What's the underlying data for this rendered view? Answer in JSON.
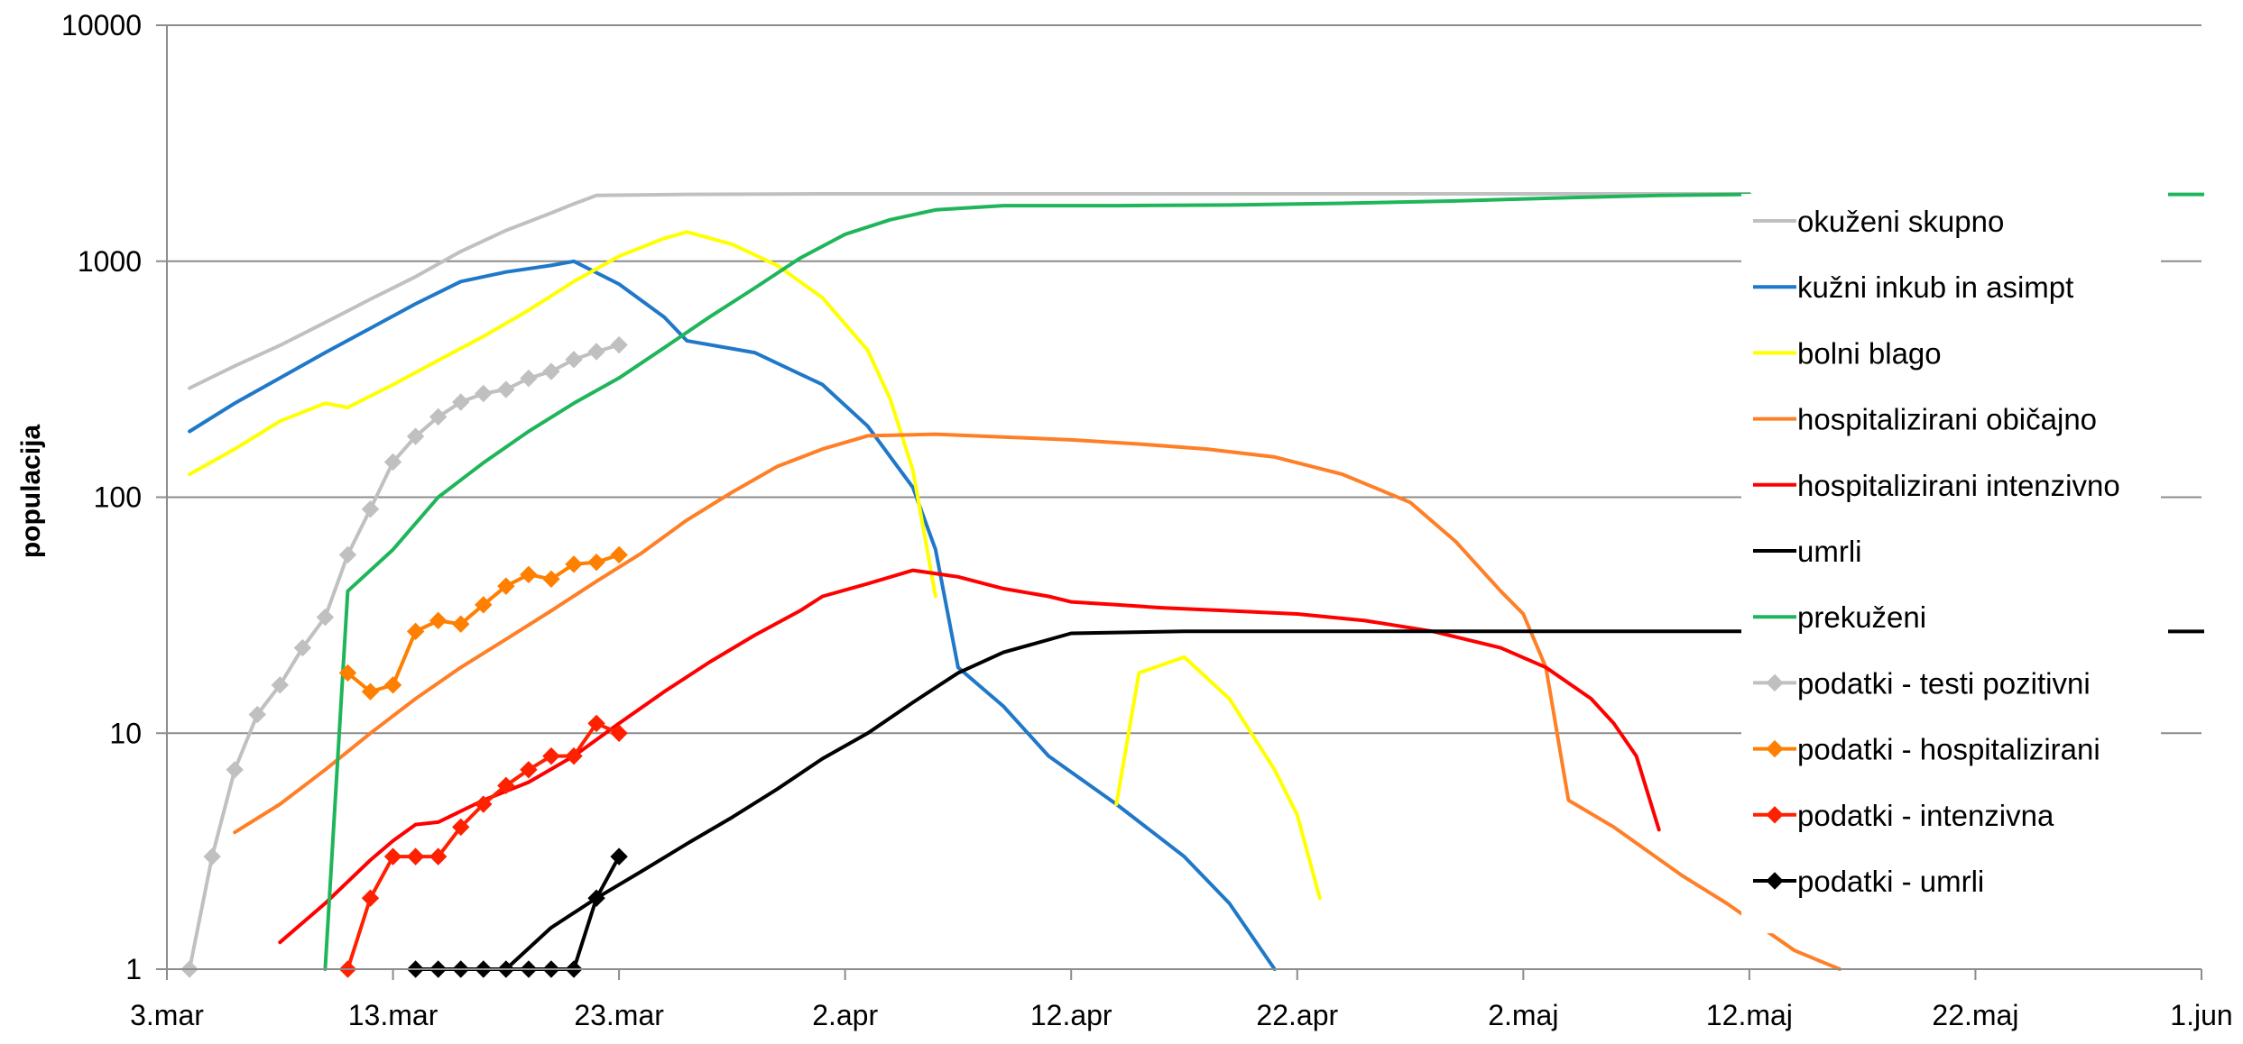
{
  "chart_data": {
    "type": "line",
    "title": "",
    "xlabel": "",
    "ylabel": "populacija",
    "yscale": "log",
    "ylim": [
      1,
      10000
    ],
    "yticks": [
      1,
      10,
      100,
      1000,
      10000
    ],
    "ytick_labels": [
      "1",
      "10",
      "100",
      "1000",
      "10000"
    ],
    "xlim": [
      "2020-03-03",
      "2020-06-01"
    ],
    "xticks": [
      "2020-03-03",
      "2020-03-13",
      "2020-03-23",
      "2020-04-02",
      "2020-04-12",
      "2020-04-22",
      "2020-05-02",
      "2020-05-12",
      "2020-05-22",
      "2020-06-01"
    ],
    "xtick_labels": [
      "3.mar",
      "13.mar",
      "23.mar",
      "2.apr",
      "12.apr",
      "22.apr",
      "2.maj",
      "12.maj",
      "22.maj",
      "1.jun"
    ],
    "grid": "horizontal",
    "legend_position": "right",
    "series": [
      {
        "name": "okuženi skupno",
        "color": "#c0c0c0",
        "marker": "none",
        "points": [
          [
            "2020-03-04",
            290
          ],
          [
            "2020-03-06",
            360
          ],
          [
            "2020-03-08",
            440
          ],
          [
            "2020-03-10",
            550
          ],
          [
            "2020-03-12",
            690
          ],
          [
            "2020-03-14",
            860
          ],
          [
            "2020-03-16",
            1100
          ],
          [
            "2020-03-18",
            1350
          ],
          [
            "2020-03-20",
            1600
          ],
          [
            "2020-03-21",
            1750
          ],
          [
            "2020-03-22",
            1900
          ],
          [
            "2020-03-26",
            1920
          ],
          [
            "2020-04-01",
            1930
          ],
          [
            "2020-05-01",
            1930
          ],
          [
            "2020-05-12",
            1930
          ]
        ]
      },
      {
        "name": "kužni inkub in asimpt",
        "color": "#1f78c8",
        "marker": "none",
        "points": [
          [
            "2020-03-04",
            190
          ],
          [
            "2020-03-06",
            250
          ],
          [
            "2020-03-08",
            320
          ],
          [
            "2020-03-10",
            410
          ],
          [
            "2020-03-12",
            520
          ],
          [
            "2020-03-14",
            660
          ],
          [
            "2020-03-16",
            820
          ],
          [
            "2020-03-18",
            900
          ],
          [
            "2020-03-20",
            960
          ],
          [
            "2020-03-21",
            1000
          ],
          [
            "2020-03-23",
            800
          ],
          [
            "2020-03-25",
            580
          ],
          [
            "2020-03-26",
            460
          ],
          [
            "2020-03-29",
            410
          ],
          [
            "2020-04-01",
            300
          ],
          [
            "2020-04-03",
            200
          ],
          [
            "2020-04-05",
            110
          ],
          [
            "2020-04-06",
            60
          ],
          [
            "2020-04-07",
            19
          ],
          [
            "2020-04-09",
            13
          ],
          [
            "2020-04-11",
            8
          ],
          [
            "2020-04-14",
            5
          ],
          [
            "2020-04-17",
            3
          ],
          [
            "2020-04-19",
            1.9
          ],
          [
            "2020-04-21",
            1
          ]
        ]
      },
      {
        "name": "bolni blago",
        "color": "#ffff00",
        "marker": "none",
        "segments": [
          [
            [
              "2020-03-04",
              125
            ],
            [
              "2020-03-06",
              160
            ],
            [
              "2020-03-08",
              210
            ],
            [
              "2020-03-10",
              250
            ],
            [
              "2020-03-11",
              240
            ],
            [
              "2020-03-13",
              300
            ],
            [
              "2020-03-15",
              380
            ],
            [
              "2020-03-17",
              480
            ],
            [
              "2020-03-19",
              620
            ],
            [
              "2020-03-21",
              820
            ],
            [
              "2020-03-23",
              1050
            ],
            [
              "2020-03-25",
              1250
            ],
            [
              "2020-03-26",
              1330
            ],
            [
              "2020-03-28",
              1180
            ],
            [
              "2020-03-30",
              960
            ],
            [
              "2020-04-01",
              700
            ],
            [
              "2020-04-03",
              420
            ],
            [
              "2020-04-04",
              260
            ],
            [
              "2020-04-05",
              130
            ],
            [
              "2020-04-06",
              38
            ]
          ],
          [
            [
              "2020-04-14",
              5
            ],
            [
              "2020-04-15",
              18
            ],
            [
              "2020-04-17",
              21
            ],
            [
              "2020-04-19",
              14
            ],
            [
              "2020-04-21",
              7
            ],
            [
              "2020-04-22",
              4.5
            ],
            [
              "2020-04-23",
              2
            ]
          ]
        ]
      },
      {
        "name": "hospitalizirani običajno",
        "color": "#ff7f27",
        "marker": "none",
        "points": [
          [
            "2020-03-06",
            3.8
          ],
          [
            "2020-03-08",
            5
          ],
          [
            "2020-03-10",
            7
          ],
          [
            "2020-03-12",
            10
          ],
          [
            "2020-03-14",
            14
          ],
          [
            "2020-03-16",
            19
          ],
          [
            "2020-03-18",
            25
          ],
          [
            "2020-03-20",
            33
          ],
          [
            "2020-03-22",
            44
          ],
          [
            "2020-03-24",
            58
          ],
          [
            "2020-03-26",
            80
          ],
          [
            "2020-03-28",
            105
          ],
          [
            "2020-03-30",
            135
          ],
          [
            "2020-04-01",
            160
          ],
          [
            "2020-04-03",
            182
          ],
          [
            "2020-04-06",
            185
          ],
          [
            "2020-04-09",
            180
          ],
          [
            "2020-04-12",
            175
          ],
          [
            "2020-04-15",
            168
          ],
          [
            "2020-04-18",
            160
          ],
          [
            "2020-04-21",
            148
          ],
          [
            "2020-04-24",
            125
          ],
          [
            "2020-04-27",
            95
          ],
          [
            "2020-04-29",
            65
          ],
          [
            "2020-05-01",
            40
          ],
          [
            "2020-05-02",
            32
          ],
          [
            "2020-05-03",
            19
          ],
          [
            "2020-05-04",
            5.2
          ],
          [
            "2020-05-06",
            4
          ],
          [
            "2020-05-09",
            2.5
          ],
          [
            "2020-05-11",
            1.9
          ],
          [
            "2020-05-14",
            1.2
          ],
          [
            "2020-05-16",
            1
          ]
        ]
      },
      {
        "name": "hospitalizirani intenzivno",
        "color": "#ff0000",
        "marker": "none",
        "points": [
          [
            "2020-03-08",
            1.3
          ],
          [
            "2020-03-10",
            1.9
          ],
          [
            "2020-03-12",
            2.9
          ],
          [
            "2020-03-13",
            3.5
          ],
          [
            "2020-03-14",
            4.1
          ],
          [
            "2020-03-15",
            4.2
          ],
          [
            "2020-03-17",
            5.2
          ],
          [
            "2020-03-19",
            6.2
          ],
          [
            "2020-03-21",
            8
          ],
          [
            "2020-03-23",
            11
          ],
          [
            "2020-03-25",
            15
          ],
          [
            "2020-03-27",
            20
          ],
          [
            "2020-03-29",
            26
          ],
          [
            "2020-03-31",
            33
          ],
          [
            "2020-04-01",
            38
          ],
          [
            "2020-04-03",
            43
          ],
          [
            "2020-04-05",
            49
          ],
          [
            "2020-04-07",
            46
          ],
          [
            "2020-04-09",
            41
          ],
          [
            "2020-04-11",
            38
          ],
          [
            "2020-04-12",
            36
          ],
          [
            "2020-04-14",
            35
          ],
          [
            "2020-04-16",
            34
          ],
          [
            "2020-04-19",
            33
          ],
          [
            "2020-04-22",
            32
          ],
          [
            "2020-04-25",
            30
          ],
          [
            "2020-04-28",
            27
          ],
          [
            "2020-05-01",
            23
          ],
          [
            "2020-05-03",
            19
          ],
          [
            "2020-05-05",
            14
          ],
          [
            "2020-05-06",
            11
          ],
          [
            "2020-05-07",
            8
          ],
          [
            "2020-05-08",
            3.9
          ]
        ]
      },
      {
        "name": "umrli",
        "color": "#000000",
        "marker": "none",
        "points": [
          [
            "2020-03-18",
            1
          ],
          [
            "2020-03-20",
            1.5
          ],
          [
            "2020-03-22",
            2
          ],
          [
            "2020-03-24",
            2.6
          ],
          [
            "2020-03-26",
            3.4
          ],
          [
            "2020-03-28",
            4.4
          ],
          [
            "2020-03-30",
            5.8
          ],
          [
            "2020-04-01",
            7.8
          ],
          [
            "2020-04-03",
            10
          ],
          [
            "2020-04-05",
            13.5
          ],
          [
            "2020-04-07",
            18
          ],
          [
            "2020-04-09",
            22
          ],
          [
            "2020-04-12",
            26.5
          ],
          [
            "2020-04-17",
            27
          ],
          [
            "2020-05-01",
            27
          ],
          [
            "2020-05-12",
            27
          ]
        ]
      },
      {
        "name": "prekuženi",
        "color": "#1fb55a",
        "marker": "none",
        "points": [
          [
            "2020-03-10",
            1
          ],
          [
            "2020-03-11",
            40
          ],
          [
            "2020-03-13",
            60
          ],
          [
            "2020-03-15",
            100
          ],
          [
            "2020-03-17",
            140
          ],
          [
            "2020-03-19",
            190
          ],
          [
            "2020-03-21",
            250
          ],
          [
            "2020-03-23",
            320
          ],
          [
            "2020-03-25",
            430
          ],
          [
            "2020-03-27",
            580
          ],
          [
            "2020-03-29",
            770
          ],
          [
            "2020-03-31",
            1030
          ],
          [
            "2020-04-02",
            1300
          ],
          [
            "2020-04-04",
            1500
          ],
          [
            "2020-04-06",
            1650
          ],
          [
            "2020-04-09",
            1720
          ],
          [
            "2020-04-14",
            1720
          ],
          [
            "2020-04-19",
            1730
          ],
          [
            "2020-04-24",
            1760
          ],
          [
            "2020-04-29",
            1800
          ],
          [
            "2020-05-04",
            1860
          ],
          [
            "2020-05-08",
            1900
          ],
          [
            "2020-05-12",
            1920
          ]
        ]
      },
      {
        "name": "podatki - testi pozitivni",
        "color": "#c0c0c0",
        "marker": "diamond",
        "points": [
          [
            "2020-03-04",
            1
          ],
          [
            "2020-03-05",
            3
          ],
          [
            "2020-03-06",
            7
          ],
          [
            "2020-03-07",
            12
          ],
          [
            "2020-03-08",
            16
          ],
          [
            "2020-03-09",
            23
          ],
          [
            "2020-03-10",
            31
          ],
          [
            "2020-03-11",
            57
          ],
          [
            "2020-03-12",
            89
          ],
          [
            "2020-03-13",
            141
          ],
          [
            "2020-03-14",
            181
          ],
          [
            "2020-03-15",
            219
          ],
          [
            "2020-03-16",
            253
          ],
          [
            "2020-03-17",
            275
          ],
          [
            "2020-03-18",
            286
          ],
          [
            "2020-03-19",
            319
          ],
          [
            "2020-03-20",
            341
          ],
          [
            "2020-03-21",
            383
          ],
          [
            "2020-03-22",
            414
          ],
          [
            "2020-03-23",
            442
          ]
        ]
      },
      {
        "name": "podatki - hospitalizirani",
        "color": "#ff7f00",
        "marker": "diamond",
        "points": [
          [
            "2020-03-11",
            18
          ],
          [
            "2020-03-12",
            15
          ],
          [
            "2020-03-13",
            16
          ],
          [
            "2020-03-14",
            27
          ],
          [
            "2020-03-15",
            30
          ],
          [
            "2020-03-16",
            29
          ],
          [
            "2020-03-17",
            35
          ],
          [
            "2020-03-18",
            42
          ],
          [
            "2020-03-19",
            47
          ],
          [
            "2020-03-20",
            45
          ],
          [
            "2020-03-21",
            52
          ],
          [
            "2020-03-22",
            53
          ],
          [
            "2020-03-23",
            57
          ]
        ]
      },
      {
        "name": "podatki - intenzivna",
        "color": "#ff2000",
        "marker": "diamond",
        "points": [
          [
            "2020-03-11",
            1
          ],
          [
            "2020-03-12",
            2
          ],
          [
            "2020-03-13",
            3
          ],
          [
            "2020-03-14",
            3
          ],
          [
            "2020-03-15",
            3
          ],
          [
            "2020-03-16",
            4
          ],
          [
            "2020-03-17",
            5
          ],
          [
            "2020-03-18",
            6
          ],
          [
            "2020-03-19",
            7
          ],
          [
            "2020-03-20",
            8
          ],
          [
            "2020-03-21",
            8
          ],
          [
            "2020-03-22",
            11
          ],
          [
            "2020-03-23",
            10
          ]
        ]
      },
      {
        "name": "podatki - umrli",
        "color": "#000000",
        "marker": "diamond",
        "points": [
          [
            "2020-03-14",
            1
          ],
          [
            "2020-03-15",
            1
          ],
          [
            "2020-03-16",
            1
          ],
          [
            "2020-03-17",
            1
          ],
          [
            "2020-03-18",
            1
          ],
          [
            "2020-03-19",
            1
          ],
          [
            "2020-03-20",
            1
          ],
          [
            "2020-03-21",
            1
          ],
          [
            "2020-03-22",
            2
          ],
          [
            "2020-03-23",
            3
          ]
        ]
      }
    ]
  }
}
